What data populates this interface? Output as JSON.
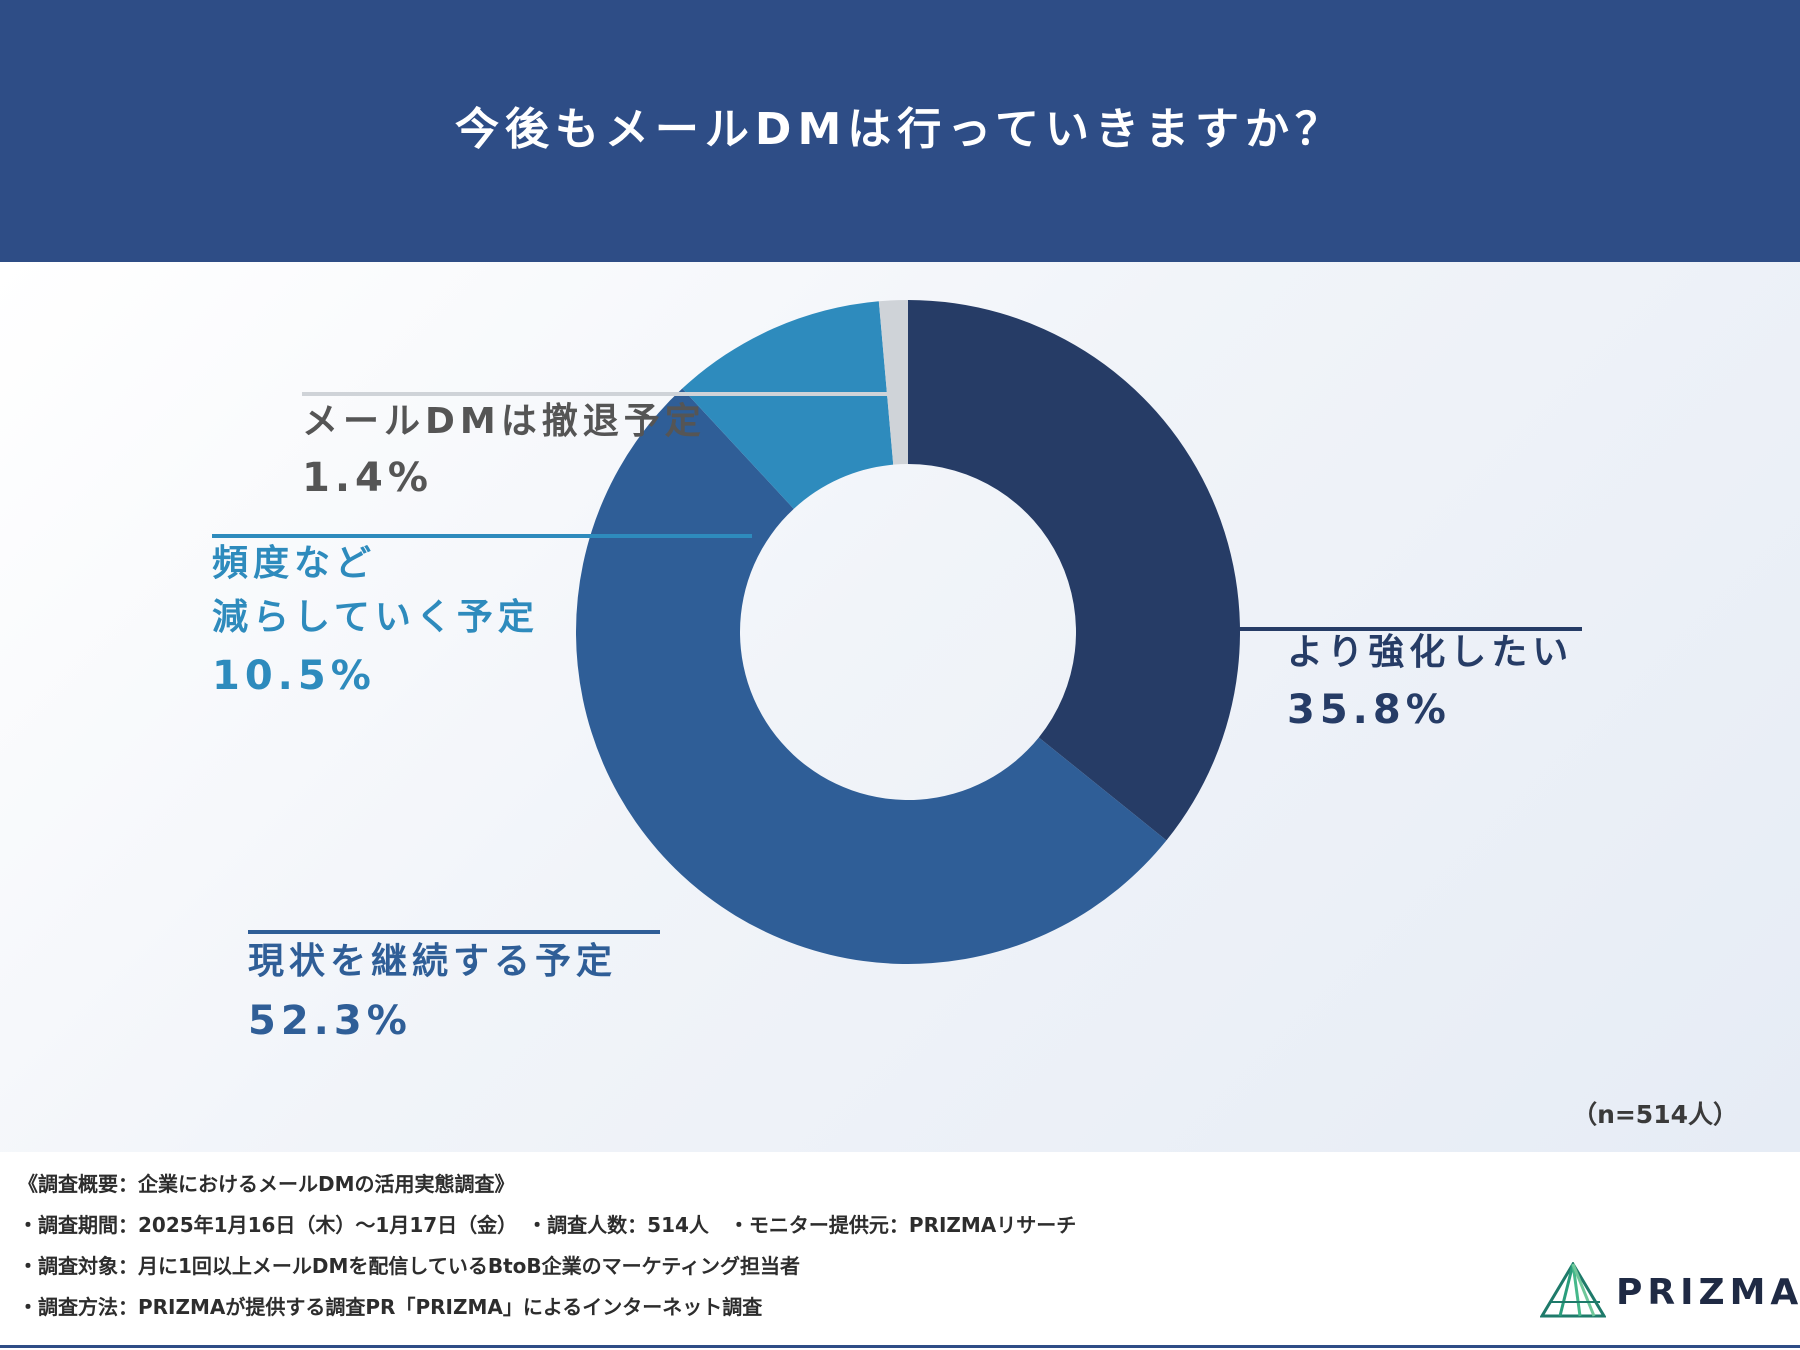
{
  "title": "今後もメールDMは行っていきますか？",
  "sample_note": "（n=514人）",
  "chart_data": {
    "type": "pie",
    "donut": true,
    "title": "今後もメールDMは行っていきますか？",
    "slices": [
      {
        "label": "より強化したい",
        "value": 35.8,
        "display": "35.8%",
        "color": "#263c66"
      },
      {
        "label": "現状を継続する予定",
        "value": 52.3,
        "display": "52.3%",
        "color": "#2f5e97"
      },
      {
        "label": "頻度など\n減らしていく予定",
        "value": 10.5,
        "display": "10.5%",
        "color": "#2e8bbd"
      },
      {
        "label": "メールDMは撤退予定",
        "value": 1.4,
        "display": "1.4%",
        "color": "#cfd3d8"
      }
    ]
  },
  "labels": {
    "strengthen": {
      "name": "より強化したい",
      "value": "35.8%",
      "color": "#263c66"
    },
    "continue": {
      "name": "現状を継続する予定",
      "value": "52.3%",
      "color": "#2f5e97"
    },
    "reduce": {
      "name_line1": "頻度など",
      "name_line2": "減らしていく予定",
      "value": "10.5%",
      "color": "#2e8bbd"
    },
    "withdraw": {
      "name": "メールDMは撤退予定",
      "value": "1.4%",
      "color": "#555555"
    }
  },
  "footer": {
    "line1": "《調査概要：企業におけるメールDMの活用実態調査》",
    "line2": "・調査期間：2025年1月16日（木）～1月17日（金）　・調査人数：514人　・モニター提供元：PRIZMAリサーチ",
    "line3": "・調査対象：月に1回以上メールDMを配信しているBtoB企業のマーケティング担当者",
    "line4": "・調査方法：PRIZMAが提供する調査PR「PRIZMA」によるインターネット調査"
  },
  "logo": {
    "text": "PRIZMA",
    "icon": "prizma-prism-icon"
  },
  "colors": {
    "header": "#2e4d86"
  }
}
